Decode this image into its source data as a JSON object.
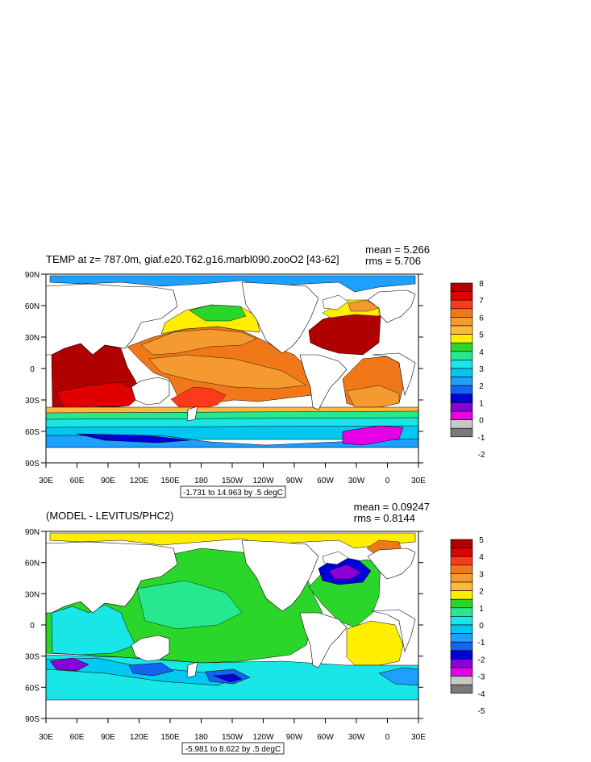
{
  "panels": [
    {
      "title": "TEMP at z= 787.0m, giaf.e20.T62.g16.marbl090.zooO2 [43-62]",
      "mean": "mean = 5.266",
      "rms": "rms = 5.706",
      "contour_info": "-1.731 to 14.963 by .5 degC",
      "lat_labels": [
        "90N",
        "60N",
        "30N",
        "0",
        "30S",
        "60S",
        "90S"
      ],
      "lon_labels": [
        "30E",
        "60E",
        "90E",
        "120E",
        "150E",
        "180",
        "150W",
        "120W",
        "90W",
        "60W",
        "30W",
        "0",
        "30E"
      ],
      "colorbar": {
        "labels": [
          "8",
          "7",
          "6",
          "5",
          "4",
          "3",
          "2",
          "1",
          "0",
          "-1",
          "-2"
        ],
        "colors": [
          "#b00000",
          "#e00000",
          "#ff3a1a",
          "#f07818",
          "#f59a30",
          "#ffb83c",
          "#ffee00",
          "#2bd62b",
          "#26e88c",
          "#19e6e6",
          "#00c8f0",
          "#1ea0ff",
          "#1464f0",
          "#0000d8",
          "#8a00d8",
          "#e600e6",
          "#c8c8c8",
          "#7a7a7a"
        ]
      }
    },
    {
      "title": "(MODEL - LEVITUS/PHC2)",
      "mean": "mean = 0.09247",
      "rms": "rms = 0.8144",
      "contour_info": "-5.981 to 8.622 by .5 degC",
      "lat_labels": [
        "90N",
        "60N",
        "30N",
        "0",
        "30S",
        "60S",
        "90S"
      ],
      "lon_labels": [
        "30E",
        "60E",
        "90E",
        "120E",
        "150E",
        "180",
        "150W",
        "120W",
        "90W",
        "60W",
        "30W",
        "0",
        "30E"
      ],
      "colorbar": {
        "labels": [
          "5",
          "4",
          "3",
          "2",
          "1",
          "0",
          "-1",
          "-2",
          "-3",
          "-4",
          "-5"
        ],
        "colors": [
          "#b00000",
          "#e00000",
          "#ff3a1a",
          "#f07818",
          "#f59a30",
          "#ffb83c",
          "#ffee00",
          "#2bd62b",
          "#26e88c",
          "#19e6e6",
          "#00c8f0",
          "#1ea0ff",
          "#1464f0",
          "#0000d8",
          "#8a00d8",
          "#e600e6",
          "#c8c8c8",
          "#7a7a7a"
        ]
      }
    }
  ]
}
